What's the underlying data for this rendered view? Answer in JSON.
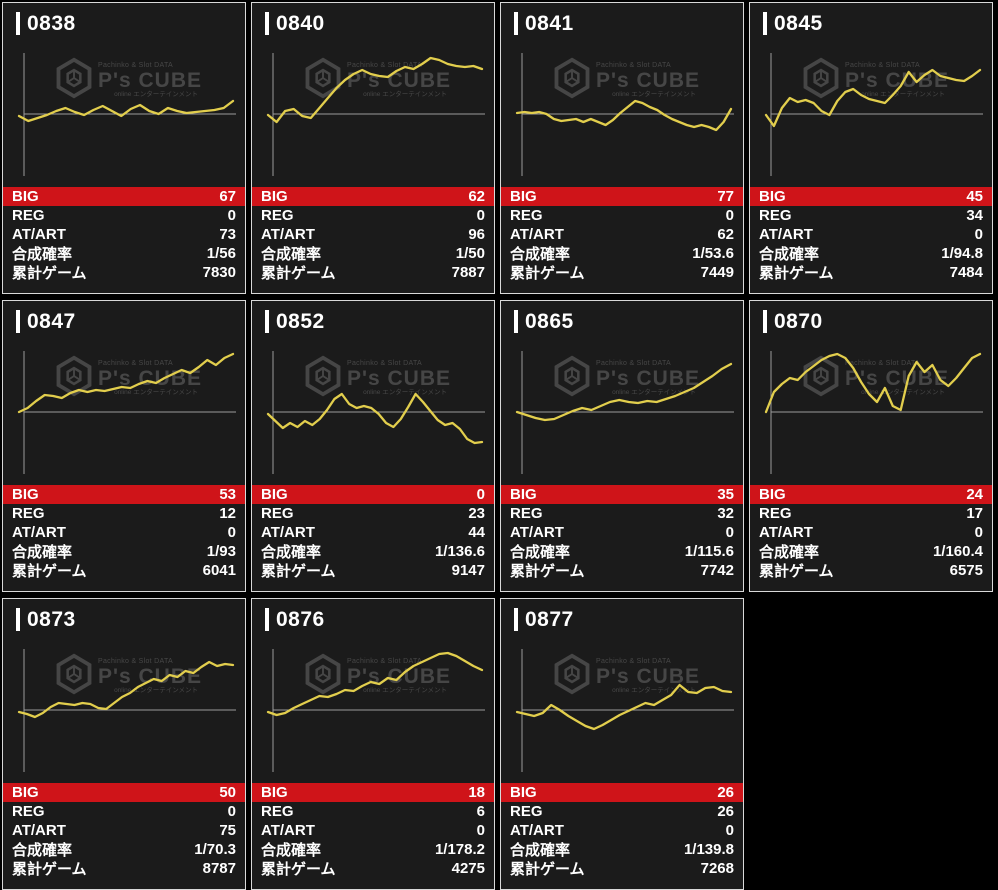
{
  "colors": {
    "page_bg": "#000000",
    "card_bg": "#1b1b1b",
    "card_border": "#d9d9d9",
    "accent_red": "#cf1419",
    "line_yellow": "#e2ce4d",
    "axis": "#9b9b9b",
    "watermark": "#9a9a9a"
  },
  "labels": {
    "big": "BIG",
    "reg": "REG",
    "at_art": "AT/ART",
    "combined_rate": "合成確率",
    "total_games": "累計ゲーム"
  },
  "watermark": {
    "top_text": "Pachinko & Slot DATA",
    "brand": "P's CUBE",
    "sub_text": "online エンターテインメント"
  },
  "machines": [
    {
      "id": "0838",
      "big": "67",
      "reg": "0",
      "at_art": "73",
      "rate": "1/56",
      "games": "7830",
      "graph": [
        -2,
        -7,
        -4,
        -1,
        3,
        6,
        2,
        -1,
        4,
        8,
        3,
        -2,
        5,
        9,
        3,
        0,
        6,
        3,
        1,
        2,
        3,
        4,
        6,
        13
      ]
    },
    {
      "id": "0840",
      "big": "62",
      "reg": "0",
      "at_art": "96",
      "rate": "1/50",
      "games": "7887",
      "graph": [
        -1,
        -8,
        3,
        5,
        -2,
        -4,
        6,
        16,
        26,
        34,
        40,
        44,
        40,
        38,
        37,
        43,
        47,
        45,
        50,
        56,
        54,
        50,
        48,
        47,
        48,
        45
      ]
    },
    {
      "id": "0841",
      "big": "77",
      "reg": "0",
      "at_art": "62",
      "rate": "1/53.6",
      "games": "7449",
      "graph": [
        1,
        2,
        1,
        2,
        0,
        -5,
        -7,
        -6,
        -5,
        -8,
        -5,
        -8,
        -11,
        -6,
        1,
        7,
        13,
        11,
        7,
        4,
        -1,
        -5,
        -8,
        -11,
        -13,
        -11,
        -13,
        -16,
        -8,
        5
      ]
    },
    {
      "id": "0845",
      "big": "45",
      "reg": "34",
      "at_art": "0",
      "rate": "1/94.8",
      "games": "7484",
      "graph": [
        -1,
        -12,
        6,
        16,
        12,
        14,
        11,
        3,
        -1,
        13,
        22,
        25,
        19,
        15,
        13,
        11,
        19,
        28,
        42,
        32,
        39,
        44,
        38,
        36,
        34,
        33,
        38,
        44
      ]
    },
    {
      "id": "0847",
      "big": "53",
      "reg": "12",
      "at_art": "0",
      "rate": "1/93",
      "games": "6041",
      "graph": [
        0,
        4,
        11,
        17,
        16,
        14,
        19,
        22,
        20,
        22,
        21,
        23,
        25,
        24,
        28,
        31,
        29,
        34,
        38,
        42,
        39,
        45,
        52,
        47,
        54,
        58
      ]
    },
    {
      "id": "0852",
      "big": "0",
      "reg": "23",
      "at_art": "44",
      "rate": "1/136.6",
      "games": "9147",
      "graph": [
        -2,
        -9,
        -16,
        -11,
        -15,
        -9,
        -13,
        -7,
        2,
        13,
        18,
        8,
        4,
        6,
        4,
        -2,
        -11,
        -15,
        -7,
        5,
        18,
        10,
        1,
        -8,
        -13,
        -11,
        -17,
        -27,
        -31,
        -30
      ]
    },
    {
      "id": "0865",
      "big": "35",
      "reg": "32",
      "at_art": "0",
      "rate": "1/115.6",
      "games": "7742",
      "graph": [
        0,
        -3,
        -6,
        -8,
        -7,
        -3,
        1,
        4,
        2,
        6,
        10,
        12,
        10,
        9,
        11,
        10,
        13,
        16,
        20,
        24,
        30,
        36,
        43,
        48
      ]
    },
    {
      "id": "0870",
      "big": "24",
      "reg": "17",
      "at_art": "0",
      "rate": "1/160.4",
      "games": "6575",
      "graph": [
        0,
        20,
        28,
        34,
        32,
        40,
        46,
        52,
        56,
        58,
        54,
        44,
        30,
        18,
        10,
        24,
        6,
        2,
        36,
        50,
        40,
        47,
        32,
        26,
        34,
        44,
        54,
        58
      ]
    },
    {
      "id": "0873",
      "big": "50",
      "reg": "0",
      "at_art": "75",
      "rate": "1/70.3",
      "games": "8787",
      "graph": [
        -2,
        -4,
        -7,
        -3,
        3,
        7,
        6,
        5,
        7,
        6,
        2,
        1,
        7,
        13,
        17,
        23,
        27,
        31,
        29,
        35,
        33,
        39,
        37,
        43,
        48,
        44,
        46,
        45
      ]
    },
    {
      "id": "0876",
      "big": "18",
      "reg": "6",
      "at_art": "0",
      "rate": "1/178.2",
      "games": "4275",
      "graph": [
        -2,
        -5,
        -3,
        2,
        6,
        10,
        14,
        13,
        16,
        20,
        19,
        24,
        28,
        26,
        32,
        30,
        38,
        44,
        48,
        52,
        56,
        57,
        54,
        49,
        44,
        40
      ]
    },
    {
      "id": "0877",
      "big": "26",
      "reg": "26",
      "at_art": "0",
      "rate": "1/139.8",
      "games": "7268",
      "graph": [
        -2,
        -4,
        -6,
        -3,
        5,
        0,
        -6,
        -11,
        -16,
        -19,
        -15,
        -10,
        -5,
        -1,
        3,
        7,
        5,
        10,
        15,
        25,
        18,
        17,
        22,
        23,
        19,
        18
      ]
    }
  ]
}
